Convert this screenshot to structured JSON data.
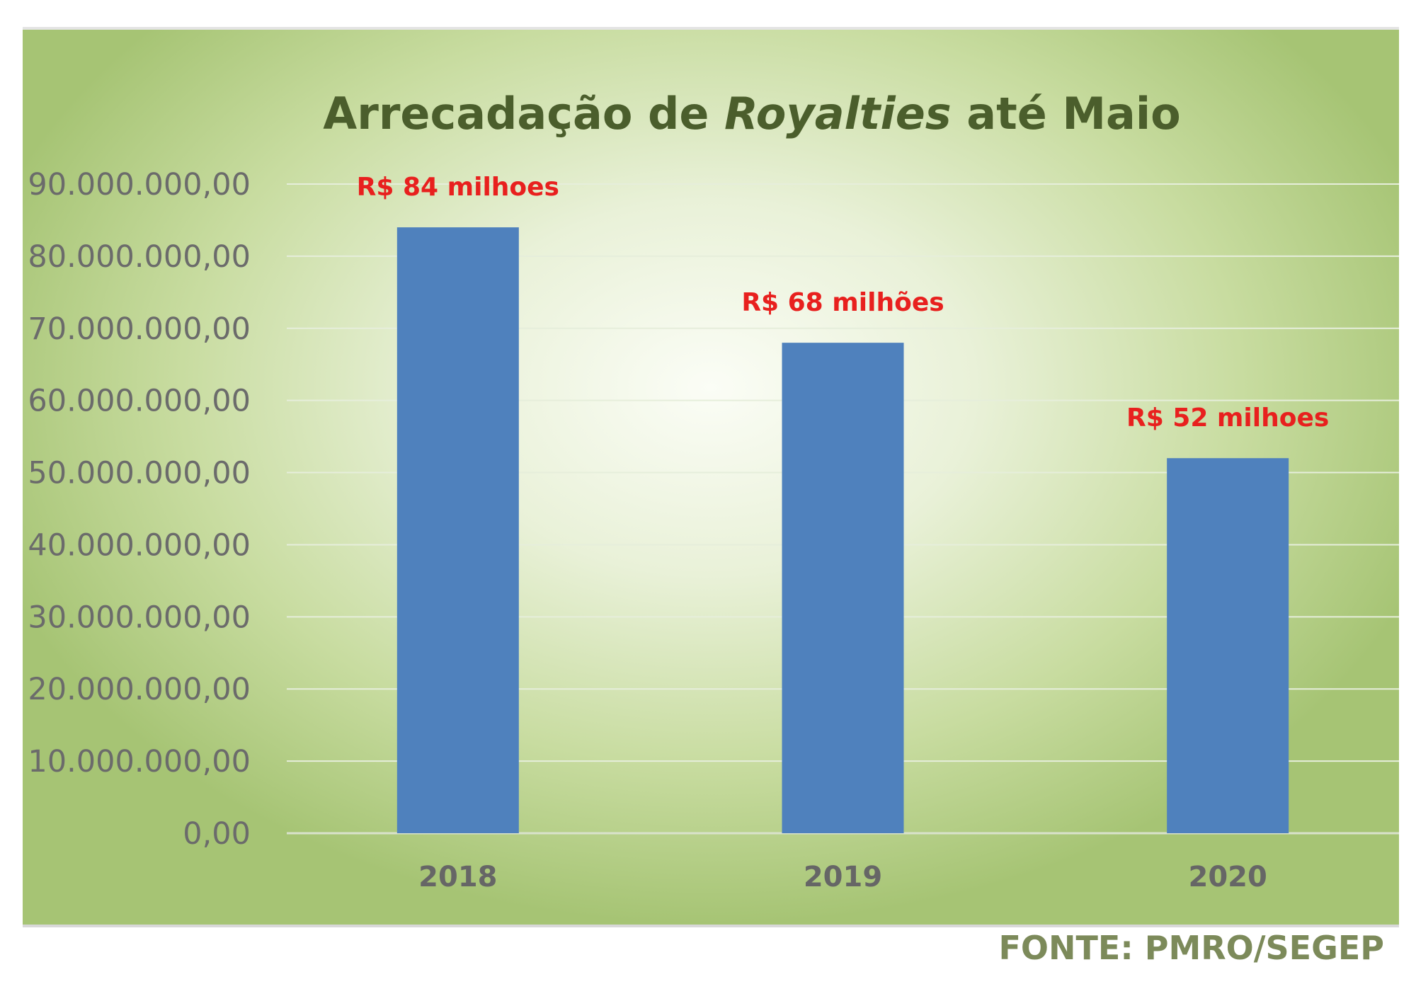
{
  "chart_data": {
    "type": "bar",
    "title": {
      "part1": "Arrecadação de ",
      "part2_italic": "Royalties",
      "part3": " até Maio"
    },
    "categories": [
      "2018",
      "2019",
      "2020"
    ],
    "values": [
      84000000,
      68000000,
      52000000
    ],
    "data_labels": [
      "R$ 84 milhoes",
      "R$ 68 milhões",
      "R$ 52 milhoes"
    ],
    "y_ticks": [
      0,
      10000000,
      20000000,
      30000000,
      40000000,
      50000000,
      60000000,
      70000000,
      80000000,
      90000000
    ],
    "y_tick_labels": [
      "0,00",
      "10.000.000,00",
      "20.000.000,00",
      "30.000.000,00",
      "40.000.000,00",
      "50.000.000,00",
      "60.000.000,00",
      "70.000.000,00",
      "80.000.000,00",
      "90.000.000,00"
    ],
    "ylim": [
      0,
      90000000
    ],
    "grid": true,
    "legend": "none",
    "colors": {
      "bar": "#4f81bd",
      "data_label": "#e8201e",
      "title": "#4b5e2c",
      "grid": "#e6eedb"
    }
  },
  "source_note": "FONTE: PMRO/SEGEP"
}
